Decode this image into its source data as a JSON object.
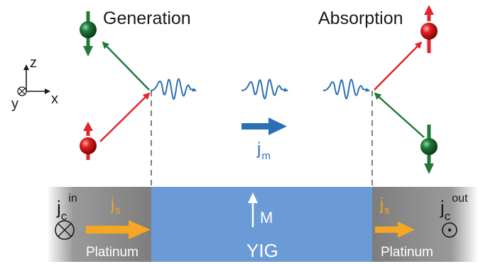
{
  "labels": {
    "generation": "Generation",
    "absorption": "Absorption",
    "axis_z": "z",
    "axis_x": "x",
    "axis_y": "y",
    "jm_main": "j",
    "jm_sub": "m",
    "jc_main_left": "j",
    "jc_sub_left": "c",
    "jc_sup_left": "in",
    "jc_main_right": "j",
    "jc_sub_right": "c",
    "jc_sup_right": "out",
    "js_main_left": "j",
    "js_sub_left": "s",
    "js_main_right": "j",
    "js_sub_right": "s",
    "magnetization": "M",
    "yig": "YIG",
    "platinum_left": "Platinum",
    "platinum_right": "Platinum"
  },
  "colors": {
    "spin_up": "#e0262a",
    "spin_down": "#1f7a3a",
    "wave": "#2a6fb5",
    "platinum": "#8c8c8c",
    "yig": "#6b9bd6",
    "current_arrow": "#f5a623",
    "jm_arrow": "#2a6fb5",
    "text_dark": "#1a1a1a",
    "text_white": "#ffffff",
    "text_orange": "#f5a623"
  },
  "icons": {
    "current_in": "circle-cross-icon",
    "current_out": "circle-dot-icon",
    "spin": "spin-sphere-icon"
  }
}
